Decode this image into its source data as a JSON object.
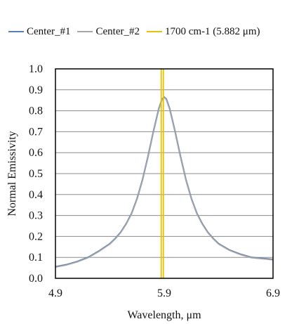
{
  "chart_data": {
    "type": "line",
    "xlabel": "Wavelength, μm",
    "ylabel": "Normal Emissivity",
    "xlim": [
      4.9,
      6.9
    ],
    "ylim": [
      0.0,
      1.0
    ],
    "x_ticks": [
      "4.9",
      "5.9",
      "6.9"
    ],
    "y_ticks": [
      "0.0",
      "0.1",
      "0.2",
      "0.3",
      "0.4",
      "0.5",
      "0.6",
      "0.7",
      "0.8",
      "0.9",
      "1.0"
    ],
    "grid": "horizontal",
    "legend_position": "top",
    "series": [
      {
        "name": "Center_#1",
        "color": "#5b7fb5",
        "x": [
          4.9,
          5.0,
          5.1,
          5.2,
          5.3,
          5.4,
          5.45,
          5.5,
          5.55,
          5.6,
          5.65,
          5.7,
          5.75,
          5.8,
          5.85,
          5.88,
          5.9,
          5.92,
          5.95,
          6.0,
          6.05,
          6.1,
          6.15,
          6.2,
          6.25,
          6.3,
          6.35,
          6.4,
          6.5,
          6.6,
          6.7,
          6.8,
          6.9
        ],
        "y": [
          0.055,
          0.065,
          0.08,
          0.1,
          0.13,
          0.165,
          0.19,
          0.22,
          0.26,
          0.31,
          0.38,
          0.47,
          0.58,
          0.7,
          0.81,
          0.855,
          0.865,
          0.855,
          0.81,
          0.7,
          0.58,
          0.47,
          0.38,
          0.31,
          0.26,
          0.22,
          0.19,
          0.165,
          0.135,
          0.115,
          0.1,
          0.095,
          0.09
        ]
      },
      {
        "name": "Center_#2",
        "color": "#a6a6a6",
        "x": [
          4.9,
          5.0,
          5.1,
          5.2,
          5.3,
          5.4,
          5.45,
          5.5,
          5.55,
          5.6,
          5.65,
          5.7,
          5.75,
          5.8,
          5.85,
          5.88,
          5.9,
          5.92,
          5.95,
          6.0,
          6.05,
          6.1,
          6.15,
          6.2,
          6.25,
          6.3,
          6.35,
          6.4,
          6.5,
          6.6,
          6.7,
          6.8,
          6.9
        ],
        "y": [
          0.053,
          0.063,
          0.078,
          0.098,
          0.128,
          0.163,
          0.188,
          0.218,
          0.258,
          0.308,
          0.378,
          0.468,
          0.578,
          0.698,
          0.808,
          0.853,
          0.863,
          0.853,
          0.808,
          0.698,
          0.578,
          0.468,
          0.378,
          0.308,
          0.258,
          0.218,
          0.188,
          0.163,
          0.133,
          0.113,
          0.098,
          0.093,
          0.088
        ]
      },
      {
        "name": "1700 cm-1 (5.882 μm)",
        "color": "#e6c200",
        "x": [
          5.882,
          5.882
        ],
        "y": [
          0.0,
          1.0
        ]
      }
    ]
  }
}
